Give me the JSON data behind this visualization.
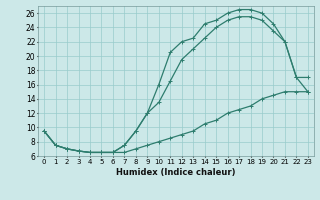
{
  "xlabel": "Humidex (Indice chaleur)",
  "bg_color": "#cce8e8",
  "grid_color": "#99cccc",
  "line_color": "#2e7d6e",
  "xlim": [
    -0.5,
    23.5
  ],
  "ylim": [
    6,
    27
  ],
  "xticks": [
    0,
    1,
    2,
    3,
    4,
    5,
    6,
    7,
    8,
    9,
    10,
    11,
    12,
    13,
    14,
    15,
    16,
    17,
    18,
    19,
    20,
    21,
    22,
    23
  ],
  "yticks": [
    6,
    8,
    10,
    12,
    14,
    16,
    18,
    20,
    22,
    24,
    26
  ],
  "curve1_x": [
    0,
    1,
    2,
    3,
    4,
    5,
    6,
    7,
    8,
    9,
    10,
    11,
    12,
    13,
    14,
    15,
    16,
    17,
    18,
    19,
    20,
    21,
    22,
    23
  ],
  "curve1_y": [
    9.5,
    7.5,
    7.0,
    6.7,
    6.5,
    6.5,
    6.5,
    6.5,
    7.0,
    7.5,
    8.0,
    8.5,
    9.0,
    9.5,
    10.5,
    11.0,
    12.0,
    12.5,
    13.0,
    14.0,
    14.5,
    15.0,
    15.0,
    15.0
  ],
  "curve2_x": [
    0,
    1,
    2,
    3,
    4,
    5,
    6,
    7,
    8,
    9,
    10,
    11,
    12,
    13,
    14,
    15,
    16,
    17,
    18,
    19,
    20,
    21,
    22,
    23
  ],
  "curve2_y": [
    9.5,
    7.5,
    7.0,
    6.7,
    6.5,
    6.5,
    6.5,
    7.5,
    9.5,
    12.0,
    13.5,
    16.5,
    19.5,
    21.0,
    22.5,
    24.0,
    25.0,
    25.5,
    25.5,
    25.0,
    23.5,
    22.0,
    17.0,
    17.0
  ],
  "curve3_x": [
    0,
    1,
    2,
    3,
    4,
    5,
    6,
    7,
    8,
    9,
    10,
    11,
    12,
    13,
    14,
    15,
    16,
    17,
    18,
    19,
    20,
    21,
    22,
    23
  ],
  "curve3_y": [
    9.5,
    7.5,
    7.0,
    6.7,
    6.5,
    6.5,
    6.5,
    7.5,
    9.5,
    12.0,
    16.0,
    20.5,
    22.0,
    22.5,
    24.5,
    25.0,
    26.0,
    26.5,
    26.5,
    26.0,
    24.5,
    22.0,
    17.0,
    15.0
  ]
}
